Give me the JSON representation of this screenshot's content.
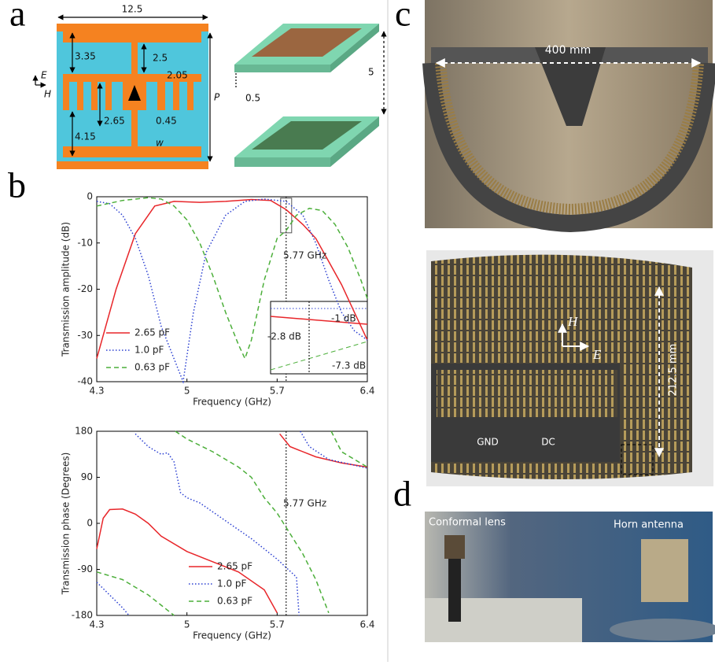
{
  "panel_labels": [
    "a",
    "b",
    "c",
    "d"
  ],
  "panel_a": {
    "dimensions": [
      "12.5",
      "3.35",
      "2.5",
      "2.05",
      "2.65",
      "0.45",
      "4.15",
      "w",
      "P",
      "0.5",
      "5"
    ],
    "axes": [
      "E",
      "H"
    ]
  },
  "chart_data": [
    {
      "type": "line",
      "ylabel": "Transmission amplitude (dB)",
      "xlabel": "Frequency (GHz)",
      "xlim": [
        4.3,
        6.4
      ],
      "xticks": [
        4.3,
        5,
        5.7,
        6.4
      ],
      "ylim": [
        -40,
        0
      ],
      "yticks": [
        -40,
        -30,
        -20,
        -10,
        0
      ],
      "vline_x": 5.77,
      "annotations": [
        "5.77 GHz",
        "-1 dB",
        "-2.8 dB",
        "-7.3 dB"
      ],
      "legend": "lower left",
      "series": [
        {
          "name": "2.65 pF",
          "color": "#e8262a",
          "linestyle": "solid",
          "x": [
            4.3,
            4.45,
            4.6,
            4.75,
            4.9,
            5.1,
            5.3,
            5.5,
            5.65,
            5.77,
            5.9,
            6.0,
            6.1,
            6.2,
            6.3,
            6.4
          ],
          "values": [
            -35,
            -20,
            -8,
            -2,
            -1,
            -1.2,
            -1,
            -0.6,
            -0.8,
            -2.8,
            -6,
            -9,
            -14,
            -19,
            -25,
            -31
          ]
        },
        {
          "name": "1.0 pF",
          "color": "#2a3fd1",
          "linestyle": "dotted",
          "x": [
            4.3,
            4.4,
            4.5,
            4.6,
            4.7,
            4.8,
            4.97,
            5.05,
            5.15,
            5.3,
            5.45,
            5.6,
            5.77,
            5.9,
            6.0,
            6.1,
            6.2,
            6.3,
            6.4
          ],
          "values": [
            -1,
            -1.5,
            -4,
            -9,
            -17,
            -28,
            -40,
            -25,
            -12,
            -4,
            -1,
            -0.5,
            -1,
            -4,
            -10,
            -18,
            -25,
            -29,
            -31
          ]
        },
        {
          "name": "0.63 pF",
          "color": "#4caf3a",
          "linestyle": "dashed",
          "x": [
            4.3,
            4.5,
            4.7,
            4.8,
            4.9,
            5.0,
            5.1,
            5.2,
            5.3,
            5.4,
            5.45,
            5.5,
            5.6,
            5.7,
            5.77,
            5.85,
            5.95,
            6.05,
            6.15,
            6.25,
            6.35,
            6.4
          ],
          "values": [
            -2,
            -0.8,
            -0.2,
            -0.5,
            -2,
            -5,
            -10,
            -17,
            -25,
            -32,
            -35,
            -31,
            -18,
            -9,
            -7.3,
            -4,
            -2.5,
            -3,
            -6,
            -11,
            -18,
            -22
          ]
        }
      ]
    },
    {
      "type": "line",
      "ylabel": "Transmission phase (Degrees)",
      "xlabel": "Frequency (GHz)",
      "xlim": [
        4.3,
        6.4
      ],
      "xticks": [
        4.3,
        5,
        5.7,
        6.4
      ],
      "ylim": [
        -180,
        180
      ],
      "yticks": [
        -180,
        -90,
        0,
        90,
        180
      ],
      "vline_x": 5.77,
      "annotations": [
        "5.77 GHz"
      ],
      "legend": "lower center",
      "series": [
        {
          "name": "2.65 pF",
          "color": "#e8262a",
          "linestyle": "solid",
          "x": [
            4.3,
            4.35,
            4.4,
            4.5,
            4.6,
            4.7,
            4.8,
            5.0,
            5.2,
            5.4,
            5.6,
            5.7,
            5.71,
            5.72,
            5.8,
            6.0,
            6.2,
            6.4
          ],
          "values": [
            -50,
            10,
            27,
            28,
            18,
            0,
            -25,
            -55,
            -75,
            -95,
            -130,
            -175,
            null,
            175,
            150,
            130,
            118,
            110
          ]
        },
        {
          "name": "1.0 pF",
          "color": "#2a3fd1",
          "linestyle": "dotted",
          "x": [
            4.3,
            4.4,
            4.5,
            4.55,
            4.57,
            4.6,
            4.7,
            4.8,
            4.85,
            4.9,
            4.95,
            5.0,
            5.1,
            5.3,
            5.5,
            5.7,
            5.85,
            5.87,
            5.875,
            5.88,
            5.95,
            6.1,
            6.4
          ],
          "values": [
            -115,
            -140,
            -165,
            -180,
            null,
            175,
            150,
            135,
            138,
            120,
            60,
            50,
            40,
            5,
            -30,
            -70,
            -105,
            -180,
            null,
            180,
            150,
            125,
            108
          ]
        },
        {
          "name": "0.63 pF",
          "color": "#4caf3a",
          "linestyle": "dashed",
          "x": [
            4.3,
            4.5,
            4.7,
            4.9,
            4.905,
            4.91,
            5.0,
            5.2,
            5.4,
            5.5,
            5.6,
            5.7,
            5.8,
            5.9,
            6.0,
            6.1,
            6.11,
            6.12,
            6.2,
            6.4
          ],
          "values": [
            -95,
            -110,
            -140,
            -180,
            null,
            180,
            165,
            140,
            110,
            90,
            50,
            20,
            -20,
            -60,
            -110,
            -175,
            null,
            180,
            140,
            110
          ]
        }
      ]
    }
  ],
  "panel_c": {
    "width_label": "400 mm",
    "height_label": "212.5 mm",
    "axes": [
      "H",
      "E"
    ],
    "callouts": [
      "GND",
      "DC"
    ]
  },
  "panel_d": {
    "labels": [
      "Conformal lens",
      "Horn antenna"
    ]
  }
}
